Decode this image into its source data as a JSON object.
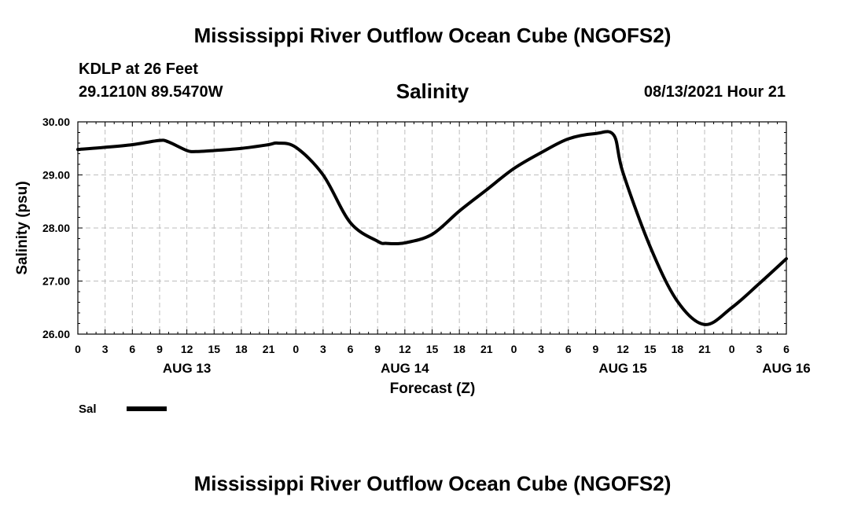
{
  "header": {
    "title": "Mississippi River Outflow Ocean Cube (NGOFS2)",
    "station": "KDLP at 26 Feet",
    "coords": "29.1210N  89.5470W",
    "plot_title": "Salinity",
    "datetime": "08/13/2021 Hour 21"
  },
  "footer": {
    "title": "Mississippi River Outflow Ocean Cube (NGOFS2)"
  },
  "chart_data": {
    "type": "line",
    "title": "Salinity",
    "xlabel": "Forecast (Z)",
    "ylabel": "Salinity (psu)",
    "xlim": [
      0,
      78
    ],
    "ylim": [
      26.0,
      30.0
    ],
    "grid": true,
    "y_ticks": [
      26.0,
      27.0,
      28.0,
      29.0,
      30.0
    ],
    "y_tick_labels": [
      "26.00",
      "27.00",
      "28.00",
      "29.00",
      "30.00"
    ],
    "x_tick_labels": [
      "0",
      "3",
      "6",
      "9",
      "12",
      "15",
      "18",
      "21",
      "0",
      "3",
      "6",
      "9",
      "12",
      "15",
      "18",
      "21",
      "0",
      "3",
      "6",
      "9",
      "12",
      "15",
      "18",
      "21",
      "0",
      "3",
      "6"
    ],
    "day_labels": [
      {
        "label": "AUG 13",
        "hour": 12
      },
      {
        "label": "AUG 14",
        "hour": 36
      },
      {
        "label": "AUG 15",
        "hour": 60
      },
      {
        "label": "AUG 16",
        "hour": 78
      }
    ],
    "legend": {
      "label": "Sal",
      "placement": "bottom-left"
    },
    "series": [
      {
        "name": "Sal",
        "color": "#000000",
        "x": [
          0,
          3,
          6,
          9,
          10,
          12,
          13,
          15,
          18,
          21,
          22,
          24,
          27,
          30,
          33,
          34,
          36,
          39,
          42,
          45,
          48,
          51,
          54,
          57,
          59,
          60,
          63,
          66,
          69,
          72,
          75,
          78
        ],
        "values": [
          29.48,
          29.52,
          29.57,
          29.65,
          29.62,
          29.46,
          29.44,
          29.46,
          29.5,
          29.57,
          29.6,
          29.52,
          29.0,
          28.1,
          27.75,
          27.71,
          27.72,
          27.88,
          28.32,
          28.72,
          29.12,
          29.42,
          29.68,
          29.78,
          29.75,
          29.05,
          27.65,
          26.62,
          26.18,
          26.5,
          26.95,
          27.42
        ]
      }
    ]
  }
}
